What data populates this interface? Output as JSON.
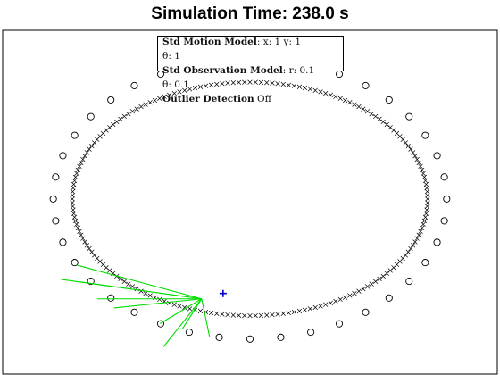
{
  "figure": {
    "title": "Simulation Time: 238.0 s"
  },
  "legend": {
    "motion_label": "Std Motion Model",
    "motion_values": ": x: 1 y: 1",
    "theta_motion": "θ: 1",
    "observation_label": "Std Observation Model",
    "observation_values": ": r: 0.1",
    "theta_observation": "θ: 0.1",
    "outlier_label": "Outlier Detection",
    "outlier_value": " Off"
  },
  "colors": {
    "trajectory": "#000000",
    "landmark": "#000000",
    "observation_ray": "#00dd00",
    "robot_marker": "#0000cc"
  },
  "chart_data": {
    "type": "scatter",
    "title": "Simulation Time: 238.0 s",
    "xlabel": "",
    "ylabel": "",
    "xlim": [
      -22,
      22
    ],
    "ylim": [
      -13.5,
      13
    ],
    "grid": false,
    "series": [
      {
        "marker": "o",
        "ellipse_center": [
          0,
          0
        ],
        "semi_axes": [
          17.5,
          10.8
        ],
        "count": 40
      },
      {
        "marker": "x",
        "ellipse_center": [
          0,
          0
        ],
        "semi_axes": [
          15.8,
          9.0
        ],
        "count": 200
      }
    ],
    "robot_position": [
      -4.3,
      -7.7
    ],
    "observed_landmarks": [
      [
        -15.4,
        -5.1
      ],
      [
        -16.8,
        -6.2
      ],
      [
        -15.1,
        -6.4
      ],
      [
        -13.6,
        -7.7
      ],
      [
        -12.1,
        -8.4
      ],
      [
        -8.0,
        -9.6
      ],
      [
        -3.6,
        -10.6
      ],
      [
        -7.7,
        -11.4
      ],
      [
        -6.0,
        -10.0
      ]
    ]
  }
}
